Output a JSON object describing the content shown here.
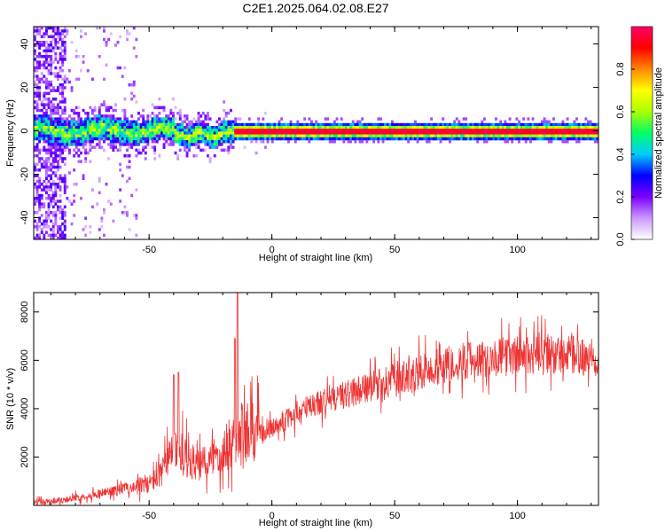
{
  "title": "C2E1.2025.064.02.08.E27",
  "chart_data": [
    {
      "type": "heatmap",
      "xlabel": "Height of straight line (km)",
      "ylabel": "Frequency (Hz)",
      "xlim": [
        -97,
        133
      ],
      "ylim": [
        -50,
        48
      ],
      "xticks": [
        -50,
        0,
        50,
        100
      ],
      "yticks": [
        -40,
        -20,
        0,
        20,
        40
      ],
      "colorbar": {
        "label": "Normalized spectral amplitude",
        "range": [
          0,
          1
        ],
        "ticks": [
          "0.0",
          "0.2",
          "0.4",
          "0.6",
          "0.8"
        ],
        "colormap": [
          "#ffffff",
          "#cc99ff",
          "#7a00ff",
          "#0000ff",
          "#00ccff",
          "#00ff66",
          "#aaff00",
          "#ffff00",
          "#ff8800",
          "#ff0000",
          "#ff0066"
        ]
      },
      "description_points": {
        "ridge_center_hz": 0,
        "broad_noise_region_km": [
          -97,
          -55
        ],
        "wide_band_region_km": [
          -90,
          -20
        ],
        "saturated_line_region_km": [
          -15,
          133
        ]
      }
    },
    {
      "type": "line",
      "xlabel": "Height of straight line (km)",
      "ylabel": "SNR (10 * v/v)",
      "xlim": [
        -97,
        133
      ],
      "ylim": [
        0,
        8800
      ],
      "xticks": [
        -50,
        0,
        50,
        100
      ],
      "yticks": [
        2000,
        4000,
        6000,
        8000
      ],
      "series_color": "#ee3333",
      "trend": {
        "x": [
          -97,
          -80,
          -70,
          -60,
          -50,
          -45,
          -40,
          -35,
          -30,
          -25,
          -20,
          -15,
          -10,
          -5,
          0,
          10,
          20,
          30,
          40,
          50,
          60,
          70,
          80,
          90,
          100,
          110,
          120,
          133
        ],
        "y": [
          100,
          300,
          500,
          700,
          900,
          1300,
          2400,
          2000,
          1600,
          1900,
          2300,
          2700,
          2800,
          3000,
          3200,
          3800,
          4300,
          4600,
          4900,
          5200,
          5500,
          5800,
          6000,
          6100,
          6200,
          6200,
          6200,
          6100
        ]
      },
      "spikes": [
        {
          "x": -14,
          "y": 8800
        },
        {
          "x": -15,
          "y": 6900
        },
        {
          "x": -40,
          "y": 5400
        },
        {
          "x": -38,
          "y": 5500
        }
      ]
    }
  ]
}
